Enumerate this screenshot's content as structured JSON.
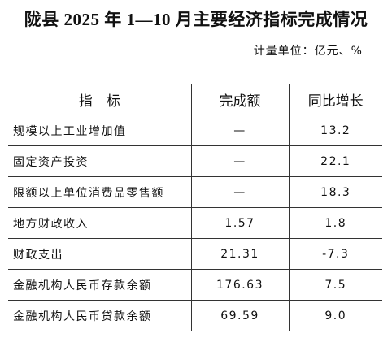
{
  "header": {
    "title": "陇县 2025 年 1—10 月主要经济指标完成情况",
    "unit": "计量单位：亿元、%"
  },
  "table": {
    "columns": [
      "指　标",
      "完成额",
      "同比增长"
    ],
    "rows": [
      [
        "规模以上工业增加值",
        "—",
        "13.2"
      ],
      [
        "固定资产投资",
        "—",
        "22.1"
      ],
      [
        "限额以上单位消费品零售额",
        "—",
        "18.3"
      ],
      [
        "地方财政收入",
        "1.57",
        "1.8"
      ],
      [
        "财政支出",
        "21.31",
        "-7.3"
      ],
      [
        "金融机构人民币存款余额",
        "176.63",
        "7.5"
      ],
      [
        "金融机构人民币贷款余额",
        "69.59",
        "9.0"
      ]
    ]
  }
}
